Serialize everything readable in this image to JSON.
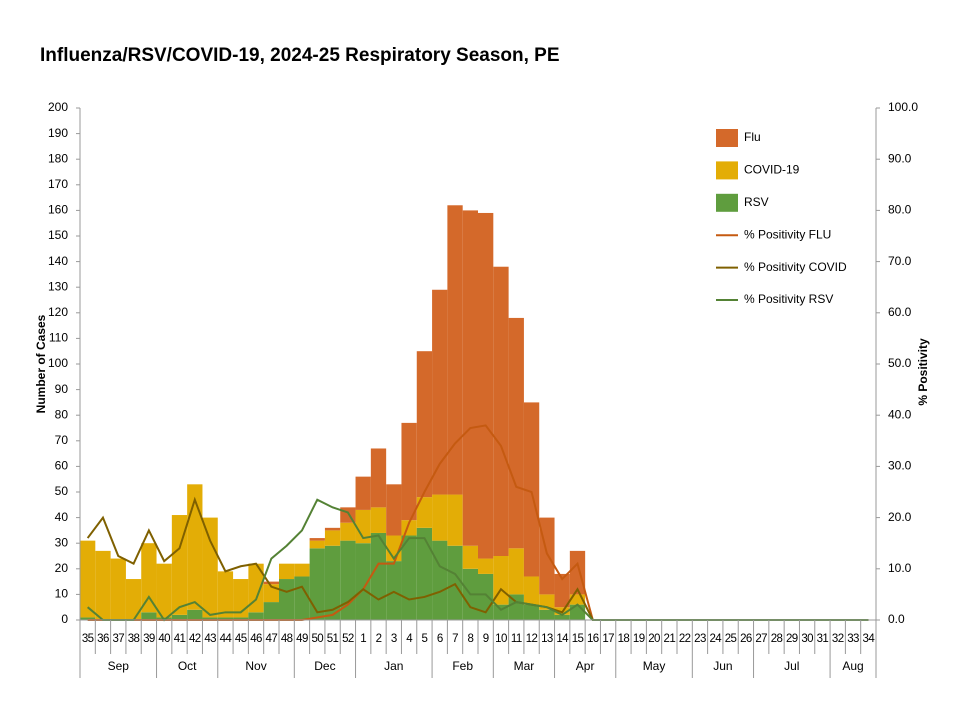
{
  "chart_data": {
    "type": "bar",
    "title": "Influenza/RSV/COVID-19, 2024-25 Respiratory Season, PE",
    "y_label": "Number of Cases",
    "y2_label": "% Positivity",
    "categories": [
      "35",
      "36",
      "37",
      "38",
      "39",
      "40",
      "41",
      "42",
      "43",
      "44",
      "45",
      "46",
      "47",
      "48",
      "49",
      "50",
      "51",
      "52",
      "1",
      "2",
      "3",
      "4",
      "5",
      "6",
      "7",
      "8",
      "9",
      "10",
      "11",
      "12",
      "13",
      "14",
      "15",
      "16",
      "17",
      "18",
      "19",
      "20",
      "21",
      "22",
      "23",
      "24",
      "25",
      "26",
      "27",
      "28",
      "29",
      "30",
      "31",
      "32",
      "33",
      "34"
    ],
    "month_groups": [
      {
        "label": "Sep",
        "first": "35",
        "last": "39"
      },
      {
        "label": "Oct",
        "first": "40",
        "last": "43"
      },
      {
        "label": "Nov",
        "first": "44",
        "last": "48"
      },
      {
        "label": "Dec",
        "first": "49",
        "last": "52"
      },
      {
        "label": "Jan",
        "first": "1",
        "last": "5"
      },
      {
        "label": "Feb",
        "first": "6",
        "last": "9"
      },
      {
        "label": "Mar",
        "first": "10",
        "last": "13"
      },
      {
        "label": "Apr",
        "first": "14",
        "last": "17"
      },
      {
        "label": "May",
        "first": "18",
        "last": "22"
      },
      {
        "label": "Jun",
        "first": "23",
        "last": "26"
      },
      {
        "label": "Jul",
        "first": "27",
        "last": "31"
      },
      {
        "label": "Aug",
        "first": "32",
        "last": "34"
      }
    ],
    "ylim": [
      0,
      200
    ],
    "yticks": [
      0,
      10,
      20,
      30,
      40,
      50,
      60,
      70,
      80,
      90,
      100,
      110,
      120,
      130,
      140,
      150,
      160,
      170,
      180,
      190,
      200
    ],
    "y2lim": [
      0,
      100
    ],
    "y2ticks": [
      {
        "value": 0,
        "label": "0.0"
      },
      {
        "value": 10,
        "label": "10.0"
      },
      {
        "value": 20,
        "label": "20.0"
      },
      {
        "value": 30,
        "label": "30.0"
      },
      {
        "value": 40,
        "label": "40.0"
      },
      {
        "value": 50,
        "label": "50.0"
      },
      {
        "value": 60,
        "label": "60.0"
      },
      {
        "value": 70,
        "label": "70.0"
      },
      {
        "value": 80,
        "label": "80.0"
      },
      {
        "value": 90,
        "label": "90.0"
      },
      {
        "value": 100,
        "label": "100.0"
      }
    ],
    "series": [
      {
        "name": "Flu",
        "type": "bar",
        "color": "#d4692a",
        "values": [
          0,
          0,
          0,
          0,
          0,
          0,
          0,
          0,
          0,
          0,
          0,
          0,
          1,
          0,
          0,
          1,
          1,
          6,
          13,
          23,
          20,
          38,
          57,
          80,
          113,
          131,
          135,
          113,
          90,
          68,
          30,
          13,
          17,
          0,
          0,
          0,
          0,
          0,
          0,
          0,
          0,
          0,
          0,
          0,
          0,
          0,
          0,
          0,
          0,
          0,
          0,
          0
        ]
      },
      {
        "name": "COVID-19",
        "type": "bar",
        "color": "#e3ad06",
        "values": [
          30,
          27,
          24,
          16,
          27,
          21,
          39,
          49,
          39,
          18,
          15,
          19,
          7,
          6,
          5,
          3,
          6,
          7,
          13,
          10,
          10,
          6,
          12,
          18,
          20,
          9,
          6,
          19,
          18,
          11,
          6,
          3,
          4,
          0,
          0,
          0,
          0,
          0,
          0,
          0,
          0,
          0,
          0,
          0,
          0,
          0,
          0,
          0,
          0,
          0,
          0,
          0
        ]
      },
      {
        "name": "RSV",
        "type": "bar",
        "color": "#5f9d3e",
        "values": [
          1,
          0,
          0,
          0,
          3,
          1,
          2,
          4,
          1,
          1,
          1,
          3,
          7,
          16,
          17,
          28,
          29,
          31,
          30,
          34,
          23,
          33,
          36,
          31,
          29,
          20,
          18,
          6,
          10,
          6,
          4,
          2,
          6,
          0,
          0,
          0,
          0,
          0,
          0,
          0,
          0,
          0,
          0,
          0,
          0,
          0,
          0,
          0,
          0,
          0,
          0,
          0
        ]
      },
      {
        "name": "% Positivity FLU",
        "type": "line",
        "axis": "y2",
        "color": "#c55a11",
        "values": [
          0,
          0,
          0,
          0,
          0,
          0,
          0,
          0,
          0,
          0,
          0,
          0,
          0,
          0,
          0,
          0.5,
          1,
          3,
          6,
          11,
          11,
          19,
          25,
          30.5,
          34.5,
          37.5,
          38,
          34,
          26,
          25,
          13,
          8,
          11,
          0,
          0,
          0,
          0,
          0,
          0,
          0,
          0,
          0,
          0,
          0,
          0,
          0,
          0,
          0,
          0,
          0,
          0,
          0
        ]
      },
      {
        "name": "% Positivity COVID",
        "type": "line",
        "axis": "y2",
        "color": "#7f6000",
        "values": [
          16,
          20,
          12.5,
          11,
          17.5,
          11.5,
          14,
          23.5,
          15.5,
          9.5,
          10.5,
          11,
          6.5,
          5.5,
          6.5,
          1.5,
          2,
          3.5,
          6,
          4,
          5.5,
          4,
          4.5,
          5.5,
          7,
          2.5,
          1.5,
          6,
          3.5,
          3,
          2.5,
          1.5,
          6,
          0,
          0,
          0,
          0,
          0,
          0,
          0,
          0,
          0,
          0,
          0,
          0,
          0,
          0,
          0,
          0,
          0,
          0,
          0
        ]
      },
      {
        "name": "% Positivity RSV",
        "type": "line",
        "axis": "y2",
        "color": "#548235",
        "values": [
          2.5,
          0,
          0,
          0,
          4.5,
          0,
          2.5,
          3.5,
          1,
          1.5,
          1.5,
          4,
          12,
          14.5,
          17.5,
          23.5,
          22,
          21,
          16,
          16.5,
          12,
          16,
          16,
          10.5,
          9,
          5,
          5,
          2,
          3.5,
          3,
          2.5,
          1,
          3,
          0,
          0,
          0,
          0,
          0,
          0,
          0,
          0,
          0,
          0,
          0,
          0,
          0,
          0,
          0,
          0,
          0,
          0,
          0
        ]
      }
    ]
  }
}
